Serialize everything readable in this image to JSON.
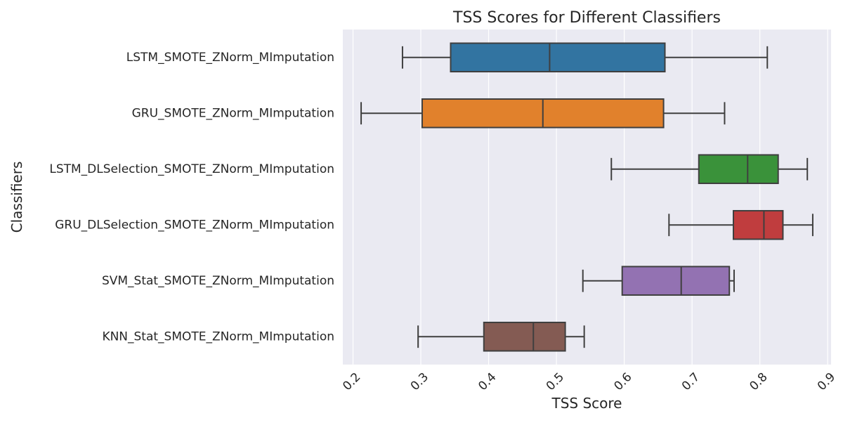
{
  "chart_data": {
    "type": "boxplot",
    "title": "TSS Scores for Different Classifiers",
    "xlabel": "TSS Score",
    "ylabel": "Classifiers",
    "xlim": [
      0.185,
      0.905
    ],
    "x_ticks": [
      0.2,
      0.3,
      0.4,
      0.5,
      0.6,
      0.7,
      0.8,
      0.9
    ],
    "x_tick_labels": [
      "0.2",
      "0.3",
      "0.4",
      "0.5",
      "0.6",
      "0.7",
      "0.8",
      "0.9"
    ],
    "x_tick_rotation_deg": -45,
    "grid": true,
    "orientation": "horizontal",
    "background_color": "#eaeaf2",
    "series": [
      {
        "category": "LSTM_SMOTE_ZNorm_MImputation",
        "whisker_low": 0.273,
        "q1": 0.344,
        "median": 0.49,
        "q3": 0.66,
        "whisker_high": 0.811,
        "color": "#3274a1"
      },
      {
        "category": "GRU_SMOTE_ZNorm_MImputation",
        "whisker_low": 0.212,
        "q1": 0.302,
        "median": 0.48,
        "q3": 0.658,
        "whisker_high": 0.748,
        "color": "#e1812c"
      },
      {
        "category": "LSTM_DLSelection_SMOTE_ZNorm_MImputation",
        "whisker_low": 0.581,
        "q1": 0.71,
        "median": 0.782,
        "q3": 0.827,
        "whisker_high": 0.87,
        "color": "#3a923a"
      },
      {
        "category": "GRU_DLSelection_SMOTE_ZNorm_MImputation",
        "whisker_low": 0.666,
        "q1": 0.761,
        "median": 0.806,
        "q3": 0.834,
        "whisker_high": 0.878,
        "color": "#c03d3e"
      },
      {
        "category": "SVM_Stat_SMOTE_ZNorm_MImputation",
        "whisker_low": 0.539,
        "q1": 0.597,
        "median": 0.684,
        "q3": 0.755,
        "whisker_high": 0.762,
        "color": "#9372b2"
      },
      {
        "category": "KNN_Stat_SMOTE_ZNorm_MImputation",
        "whisker_low": 0.296,
        "q1": 0.393,
        "median": 0.466,
        "q3": 0.513,
        "whisker_high": 0.541,
        "color": "#845b53"
      }
    ]
  }
}
